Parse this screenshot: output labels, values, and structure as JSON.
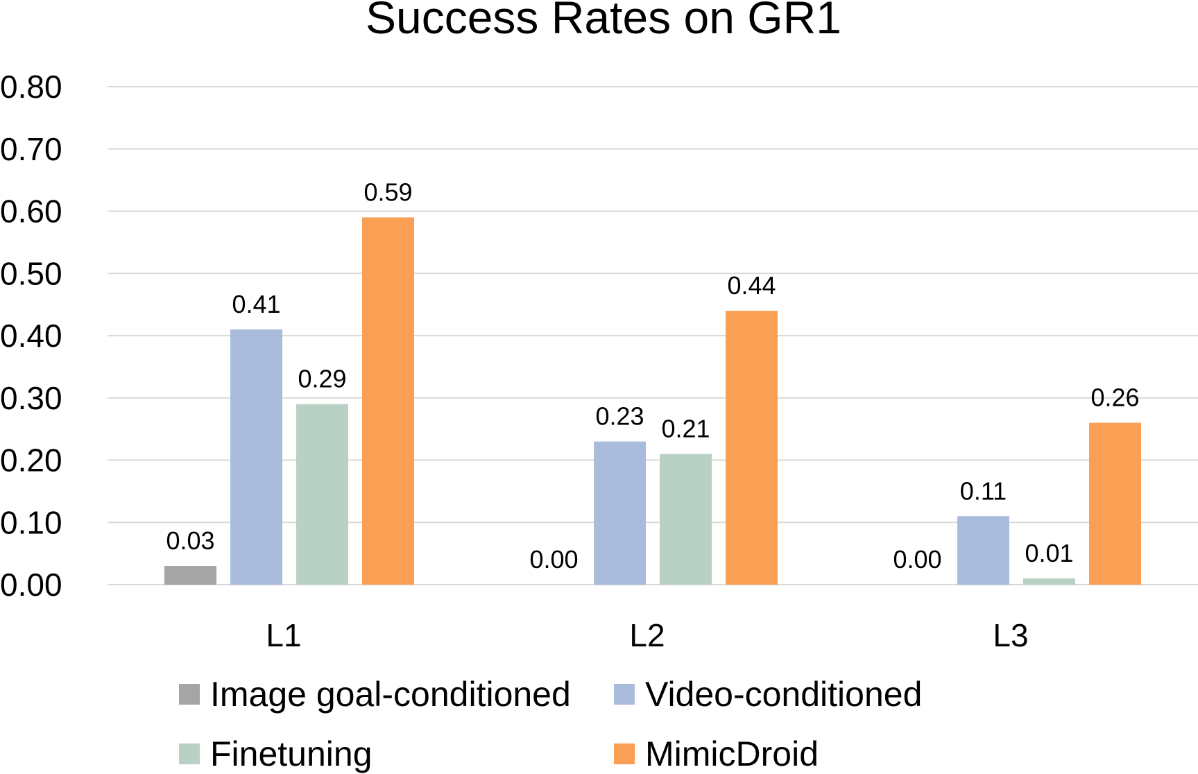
{
  "chart_data": {
    "type": "bar",
    "title": "Success Rates on GR1",
    "xlabel": "",
    "ylabel": "",
    "categories": [
      "L1",
      "L2",
      "L3"
    ],
    "ylim": [
      0,
      0.8
    ],
    "yticks": [
      "0.00",
      "0.10",
      "0.20",
      "0.30",
      "0.40",
      "0.50",
      "0.60",
      "0.70",
      "0.80"
    ],
    "grid": true,
    "legend_position": "bottom",
    "series": [
      {
        "name": "Image goal-conditioned",
        "color": "#a5a5a5",
        "values": [
          0.03,
          0.0,
          0.0
        ],
        "labels": [
          "0.03",
          "0.00",
          "0.00"
        ]
      },
      {
        "name": "Video-conditioned",
        "color": "#a9bcdc",
        "values": [
          0.41,
          0.23,
          0.11
        ],
        "labels": [
          "0.41",
          "0.23",
          "0.11"
        ]
      },
      {
        "name": "Finetuning",
        "color": "#b9d1c4",
        "values": [
          0.29,
          0.21,
          0.01
        ],
        "labels": [
          "0.29",
          "0.21",
          "0.01"
        ]
      },
      {
        "name": "MimicDroid",
        "color": "#fa9f53",
        "values": [
          0.59,
          0.44,
          0.26
        ],
        "labels": [
          "0.59",
          "0.44",
          "0.26"
        ]
      }
    ]
  }
}
